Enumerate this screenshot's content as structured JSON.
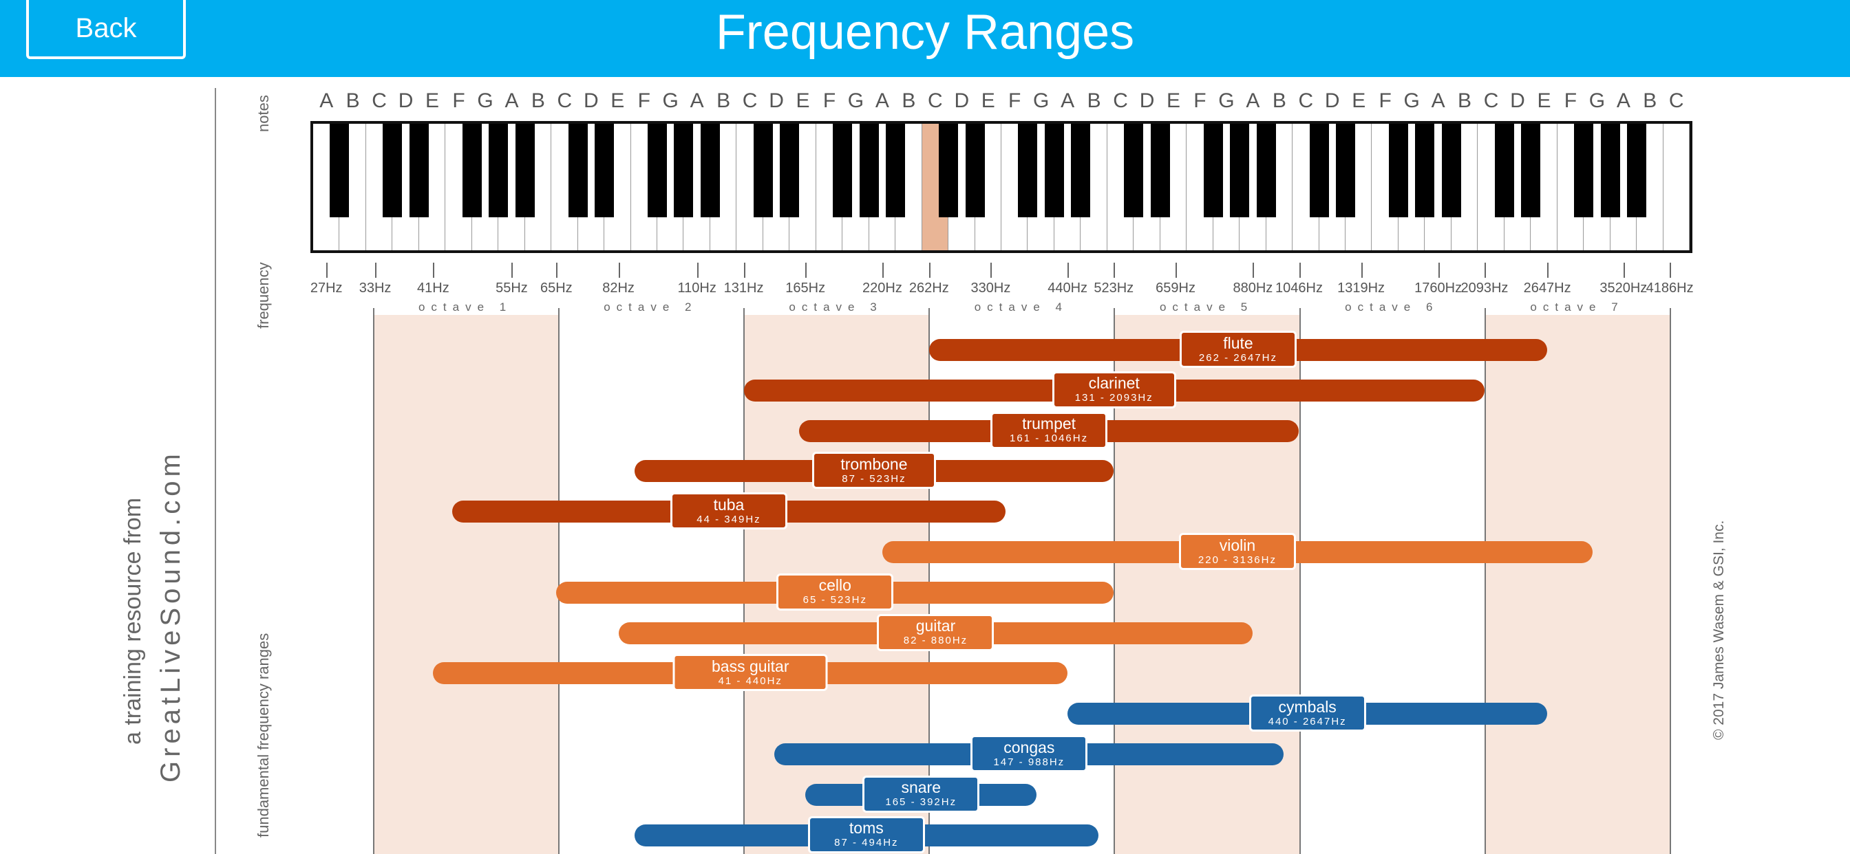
{
  "header": {
    "title": "Frequency Ranges",
    "back_label": "Back"
  },
  "side_text": {
    "line1": "a training resource from",
    "line2": "GreatLiveSound.com"
  },
  "axis_labels": {
    "notes": "notes",
    "frequency": "frequency",
    "fundamental": "fundamental  frequency ranges"
  },
  "copyright": "© 2017 James Wasem & GSI, Inc.",
  "notes": [
    "A",
    "B",
    "C",
    "D",
    "E",
    "F",
    "G",
    "A",
    "B",
    "C",
    "D",
    "E",
    "F",
    "G",
    "A",
    "B",
    "C",
    "D",
    "E",
    "F",
    "G",
    "A",
    "B",
    "C",
    "D",
    "E",
    "F",
    "G",
    "A",
    "B",
    "C",
    "D",
    "E",
    "F",
    "G",
    "A",
    "B",
    "C",
    "D",
    "E",
    "F",
    "G",
    "A",
    "B",
    "C",
    "D",
    "E",
    "F",
    "G",
    "A",
    "B",
    "C"
  ],
  "frequencies": [
    "27Hz",
    "33Hz",
    "41Hz",
    "55Hz",
    "65Hz",
    "82Hz",
    "110Hz",
    "131Hz",
    "165Hz",
    "220Hz",
    "262Hz",
    "330Hz",
    "440Hz",
    "523Hz",
    "659Hz",
    "880Hz",
    "1046Hz",
    "1319Hz",
    "1760Hz",
    "2093Hz",
    "2647Hz",
    "3520Hz",
    "4186Hz"
  ],
  "octaves": [
    "octave 1",
    "octave 2",
    "octave 3",
    "octave 4",
    "octave 5",
    "octave 6",
    "octave 7"
  ],
  "highlighted_note": "C (262Hz)",
  "colors": {
    "header": "#00aeef",
    "brass": "#b83c08",
    "strings": "#e57530",
    "percussion": "#1f66a5",
    "octave_band": "#f8e6dc",
    "highlight_key": "#e9b596"
  },
  "instruments": [
    {
      "name": "flute",
      "range": "262 - 2647Hz",
      "group": "brass"
    },
    {
      "name": "clarinet",
      "range": "131 - 2093Hz",
      "group": "brass"
    },
    {
      "name": "trumpet",
      "range": "161 - 1046Hz",
      "group": "brass"
    },
    {
      "name": "trombone",
      "range": "87 - 523Hz",
      "group": "brass"
    },
    {
      "name": "tuba",
      "range": "44 - 349Hz",
      "group": "brass"
    },
    {
      "name": "violin",
      "range": "220 - 3136Hz",
      "group": "strings"
    },
    {
      "name": "cello",
      "range": "65 - 523Hz",
      "group": "strings"
    },
    {
      "name": "guitar",
      "range": "82 - 880Hz",
      "group": "strings"
    },
    {
      "name": "bass guitar",
      "range": "41 - 440Hz",
      "group": "strings"
    },
    {
      "name": "cymbals",
      "range": "440 - 2647Hz",
      "group": "percussion"
    },
    {
      "name": "congas",
      "range": "147 - 988Hz",
      "group": "percussion"
    },
    {
      "name": "snare",
      "range": "165 - 392Hz",
      "group": "percussion"
    },
    {
      "name": "toms",
      "range": "87 - 494Hz",
      "group": "percussion"
    }
  ]
}
